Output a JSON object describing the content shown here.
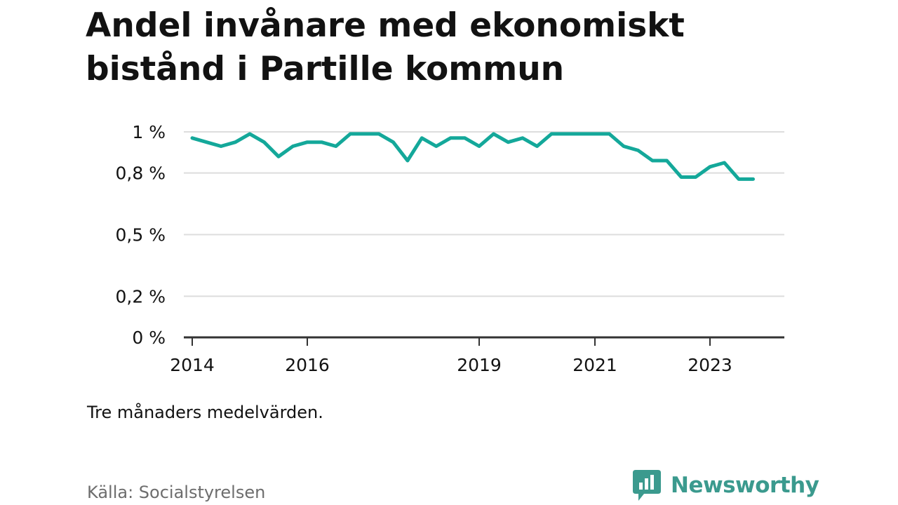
{
  "title": "Andel invånare med ekonomiskt bistånd i Partille kommun",
  "note": "Tre månaders medelvärden.",
  "source": "Källa: Socialstyrelsen",
  "brand": {
    "name": "Newsworthy",
    "logo_icon": "bar-chart-icon"
  },
  "colors": {
    "line": "#14a89a",
    "brand": "#3b9a8e",
    "grid": "#dddddd",
    "axis": "#333333",
    "text": "#121212",
    "muted": "#6d6d6d"
  },
  "chart_data": {
    "type": "line",
    "title": "Andel invånare med ekonomiskt bistånd i Partille kommun",
    "xlabel": "",
    "ylabel": "",
    "xlim": [
      2013.75,
      2024.5
    ],
    "ylim": [
      0,
      1
    ],
    "yticks": [
      0,
      0.2,
      0.5,
      0.8,
      1
    ],
    "ytick_labels": [
      "0 %",
      "0,2 %",
      "0,5 %",
      "0,8 %",
      "1 %"
    ],
    "xticks": [
      2014,
      2016,
      2019,
      2021,
      2023
    ],
    "xtick_labels": [
      "2014",
      "2016",
      "2019",
      "2021",
      "2023"
    ],
    "grid": true,
    "legend": "none",
    "series": [
      {
        "x": [
          2014.0,
          2014.25,
          2014.5,
          2014.75,
          2015.0,
          2015.25,
          2015.5,
          2015.75,
          2016.0,
          2016.25,
          2016.5,
          2016.75,
          2017.0,
          2017.25,
          2017.5,
          2017.75,
          2018.0,
          2018.25,
          2018.5,
          2018.75,
          2019.0,
          2019.25,
          2019.5,
          2019.75,
          2020.0,
          2020.25,
          2020.5,
          2020.75,
          2021.0,
          2021.25,
          2021.5,
          2021.75,
          2022.0,
          2022.25,
          2022.5,
          2022.75,
          2023.0,
          2023.25,
          2023.5,
          2023.75
        ],
        "y": [
          0.97,
          0.95,
          0.93,
          0.95,
          0.99,
          0.95,
          0.88,
          0.93,
          0.95,
          0.95,
          0.93,
          0.99,
          0.99,
          0.99,
          0.95,
          0.86,
          0.97,
          0.93,
          0.97,
          0.97,
          0.93,
          0.99,
          0.95,
          0.97,
          0.93,
          0.99,
          0.99,
          0.99,
          0.99,
          0.99,
          0.93,
          0.91,
          0.86,
          0.86,
          0.78,
          0.78,
          0.83,
          0.85,
          0.77,
          0.77
        ]
      }
    ]
  }
}
